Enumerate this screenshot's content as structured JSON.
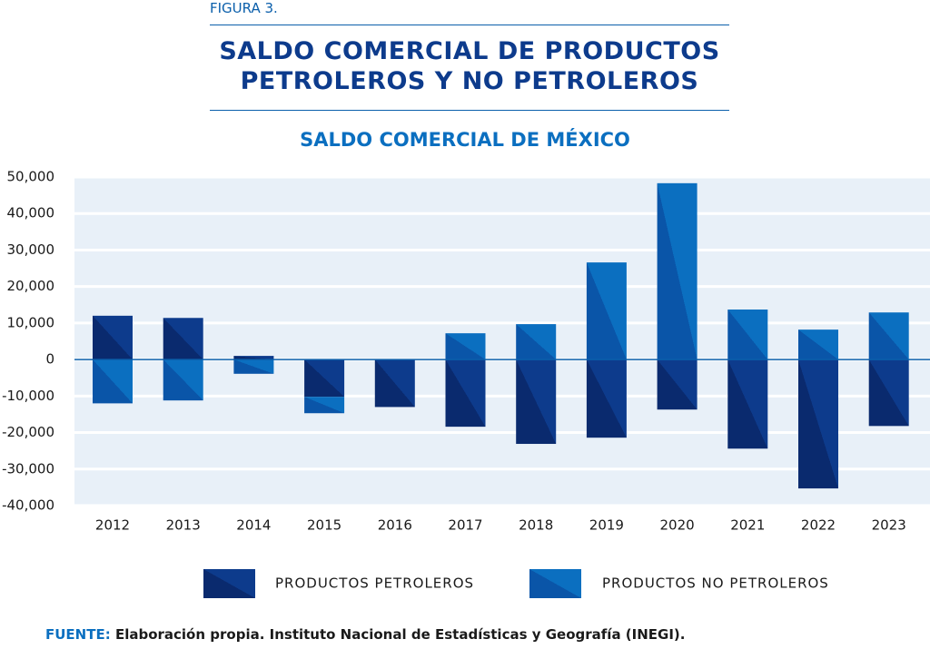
{
  "chart_data": {
    "type": "bar",
    "stacked": true,
    "figure_label": "FIGURA 3.",
    "title": "SALDO COMERCIAL DE PRODUCTOS PETROLEROS Y NO PETROLEROS",
    "subtitle": "SALDO COMERCIAL DE MÉXICO",
    "categories": [
      "2012",
      "2013",
      "2014",
      "2015",
      "2016",
      "2017",
      "2018",
      "2019",
      "2020",
      "2021",
      "2022",
      "2023"
    ],
    "series": [
      {
        "name": "PRODUCTOS PETROLEROS",
        "color": "#0d3b8c",
        "color2": "#0a2a6e",
        "values": [
          12000,
          11400,
          1000,
          -10200,
          -13000,
          -18400,
          -23100,
          -21400,
          -13700,
          -24400,
          -35300,
          -18200
        ]
      },
      {
        "name": "PRODUCTOS NO PETROLEROS",
        "color": "#0b6fc0",
        "color2": "#0a55a8",
        "values": [
          -12000,
          -11200,
          -3900,
          -4500,
          0,
          7200,
          9700,
          26600,
          48300,
          13700,
          8200,
          12900
        ]
      }
    ],
    "ylim": [
      -40000,
      50000
    ],
    "yticks": [
      {
        "value": 50000,
        "label": "50,000"
      },
      {
        "value": 40000,
        "label": "40,000"
      },
      {
        "value": 30000,
        "label": "30,000"
      },
      {
        "value": 20000,
        "label": "20,000"
      },
      {
        "value": 10000,
        "label": "10,000"
      },
      0,
      {
        "value": -10000,
        "label": "-10,000"
      },
      {
        "value": -20000,
        "label": "-20,000"
      },
      {
        "value": -30000,
        "label": "-30,000"
      },
      {
        "value": -40000,
        "label": "-40,000"
      }
    ],
    "grid": true,
    "source_label": "FUENTE:",
    "source": "Elaboración propia. Instituto Nacional de Estadísticas y Geografía (INEGI)."
  }
}
